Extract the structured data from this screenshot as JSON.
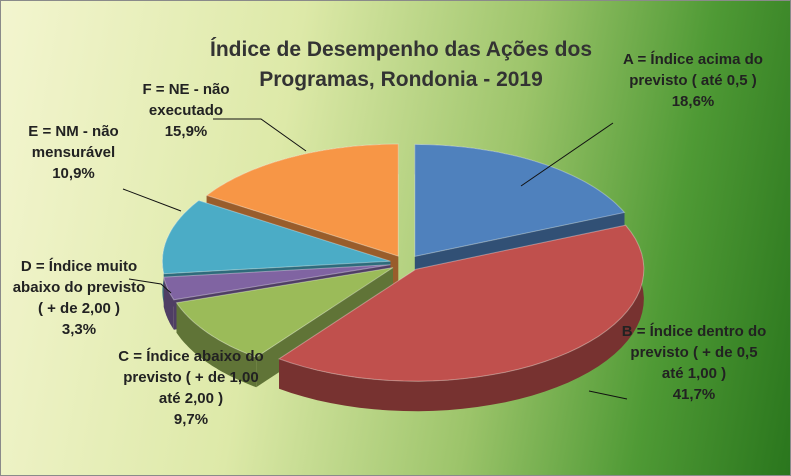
{
  "chart_data": {
    "type": "pie",
    "title": "Índice de Desempenho das Ações dos Programas, Rondonia - 2019",
    "categories": [
      "A = Índice acima do previsto ( até 0,5 )",
      "B = Índice dentro do previsto ( + de 0,5 até 1,00 )",
      "C = Índice abaixo do previsto ( + de 1,00 até 2,00 )",
      "D = Índice muito abaixo do previsto ( + de 2,00 )",
      "E = NM - não mensurável",
      "F = NE - não executado"
    ],
    "values": [
      18.6,
      41.7,
      9.7,
      3.3,
      10.9,
      15.9
    ],
    "value_labels": [
      "18,6%",
      "41,7%",
      "9,7%",
      "3,3%",
      "10,9%",
      "15,9%"
    ],
    "colors": [
      "#4f81bd",
      "#c0504d",
      "#9bbb59",
      "#8064a2",
      "#4bacc6",
      "#f79646"
    ]
  }
}
